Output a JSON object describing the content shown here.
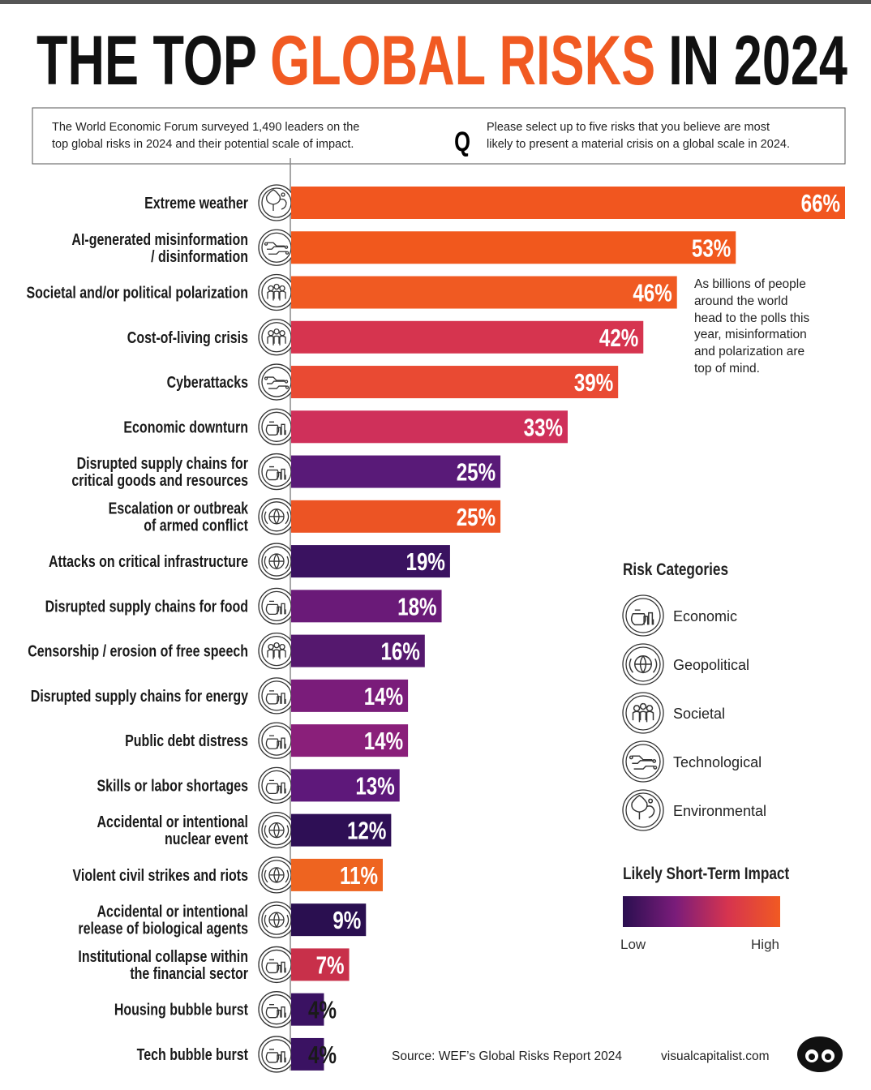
{
  "chart_data": {
    "type": "bar",
    "orientation": "horizontal",
    "title": [
      "THE TOP",
      "GLOBAL RISKS",
      "IN 2024"
    ],
    "title_colors": [
      "#111111",
      "#f15a22",
      "#111111"
    ],
    "subtitle": "The World Economic Forum surveyed 1,490 leaders on the\ntop global risks in 2024 and their potential scale of impact.",
    "question_mark": "Q",
    "question": "Please select up to five risks that you believe are most\nlikely to present a material crisis on a global scale in 2024.",
    "categories": [
      "Extreme weather",
      "AI-generated misinformation\n/ disinformation",
      "Societal and/or political polarization",
      "Cost-of-living crisis",
      "Cyberattacks",
      "Economic downturn",
      "Disrupted supply chains for\ncritical goods and resources",
      "Escalation or outbreak\nof armed conflict",
      "Attacks on critical infrastructure",
      "Disrupted supply chains for food",
      "Censorship / erosion of free speech",
      "Disrupted supply chains for energy",
      "Public debt distress",
      "Skills or labor shortages",
      "Accidental or intentional\nnuclear event",
      "Violent civil strikes and riots",
      "Accidental or intentional\nrelease of biological agents",
      "Institutional collapse within\nthe financial sector",
      "Housing bubble burst",
      "Tech bubble burst"
    ],
    "values": [
      66,
      53,
      46,
      42,
      39,
      33,
      25,
      25,
      19,
      18,
      16,
      14,
      14,
      13,
      12,
      11,
      9,
      7,
      4,
      4
    ],
    "value_labels": [
      "66%",
      "53%",
      "46%",
      "42%",
      "39%",
      "33%",
      "25%",
      "25%",
      "19%",
      "18%",
      "16%",
      "14%",
      "14%",
      "13%",
      "12%",
      "11%",
      "9%",
      "7%",
      "4%",
      "4%"
    ],
    "colors": [
      "#f1561f",
      "#f1581d",
      "#f05a22",
      "#d6344f",
      "#e94a33",
      "#cf305a",
      "#591a78",
      "#ec5424",
      "#3a1260",
      "#6a1a78",
      "#55186e",
      "#7a1c7a",
      "#8a1f7a",
      "#5e187a",
      "#2e0f55",
      "#ee6420",
      "#2a0f50",
      "#c8304a",
      "#3a1262",
      "#3a1262"
    ],
    "risk_categories": [
      "Environmental",
      "Technological",
      "Societal",
      "Societal",
      "Technological",
      "Economic",
      "Economic",
      "Geopolitical",
      "Geopolitical",
      "Economic",
      "Societal",
      "Economic",
      "Economic",
      "Economic",
      "Geopolitical",
      "Geopolitical",
      "Geopolitical",
      "Economic",
      "Economic",
      "Economic"
    ],
    "xlim": [
      0,
      66
    ],
    "annotation": "As billions of people\naround the world\nhead to the polls this\nyear, misinformation\nand polarization are\ntop of mind.",
    "legend_title": "Risk Categories",
    "legend": [
      "Economic",
      "Geopolitical",
      "Societal",
      "Technological",
      "Environmental"
    ],
    "impact_legend": {
      "title": "Likely Short-Term Impact",
      "low": "Low",
      "high": "High",
      "colors": [
        "#2a0f50",
        "#7a1c7a",
        "#d6344f",
        "#f15a22"
      ]
    },
    "source": "Source: WEF’s Global Risks Report 2024",
    "credit": "visualcapitalist.com"
  }
}
